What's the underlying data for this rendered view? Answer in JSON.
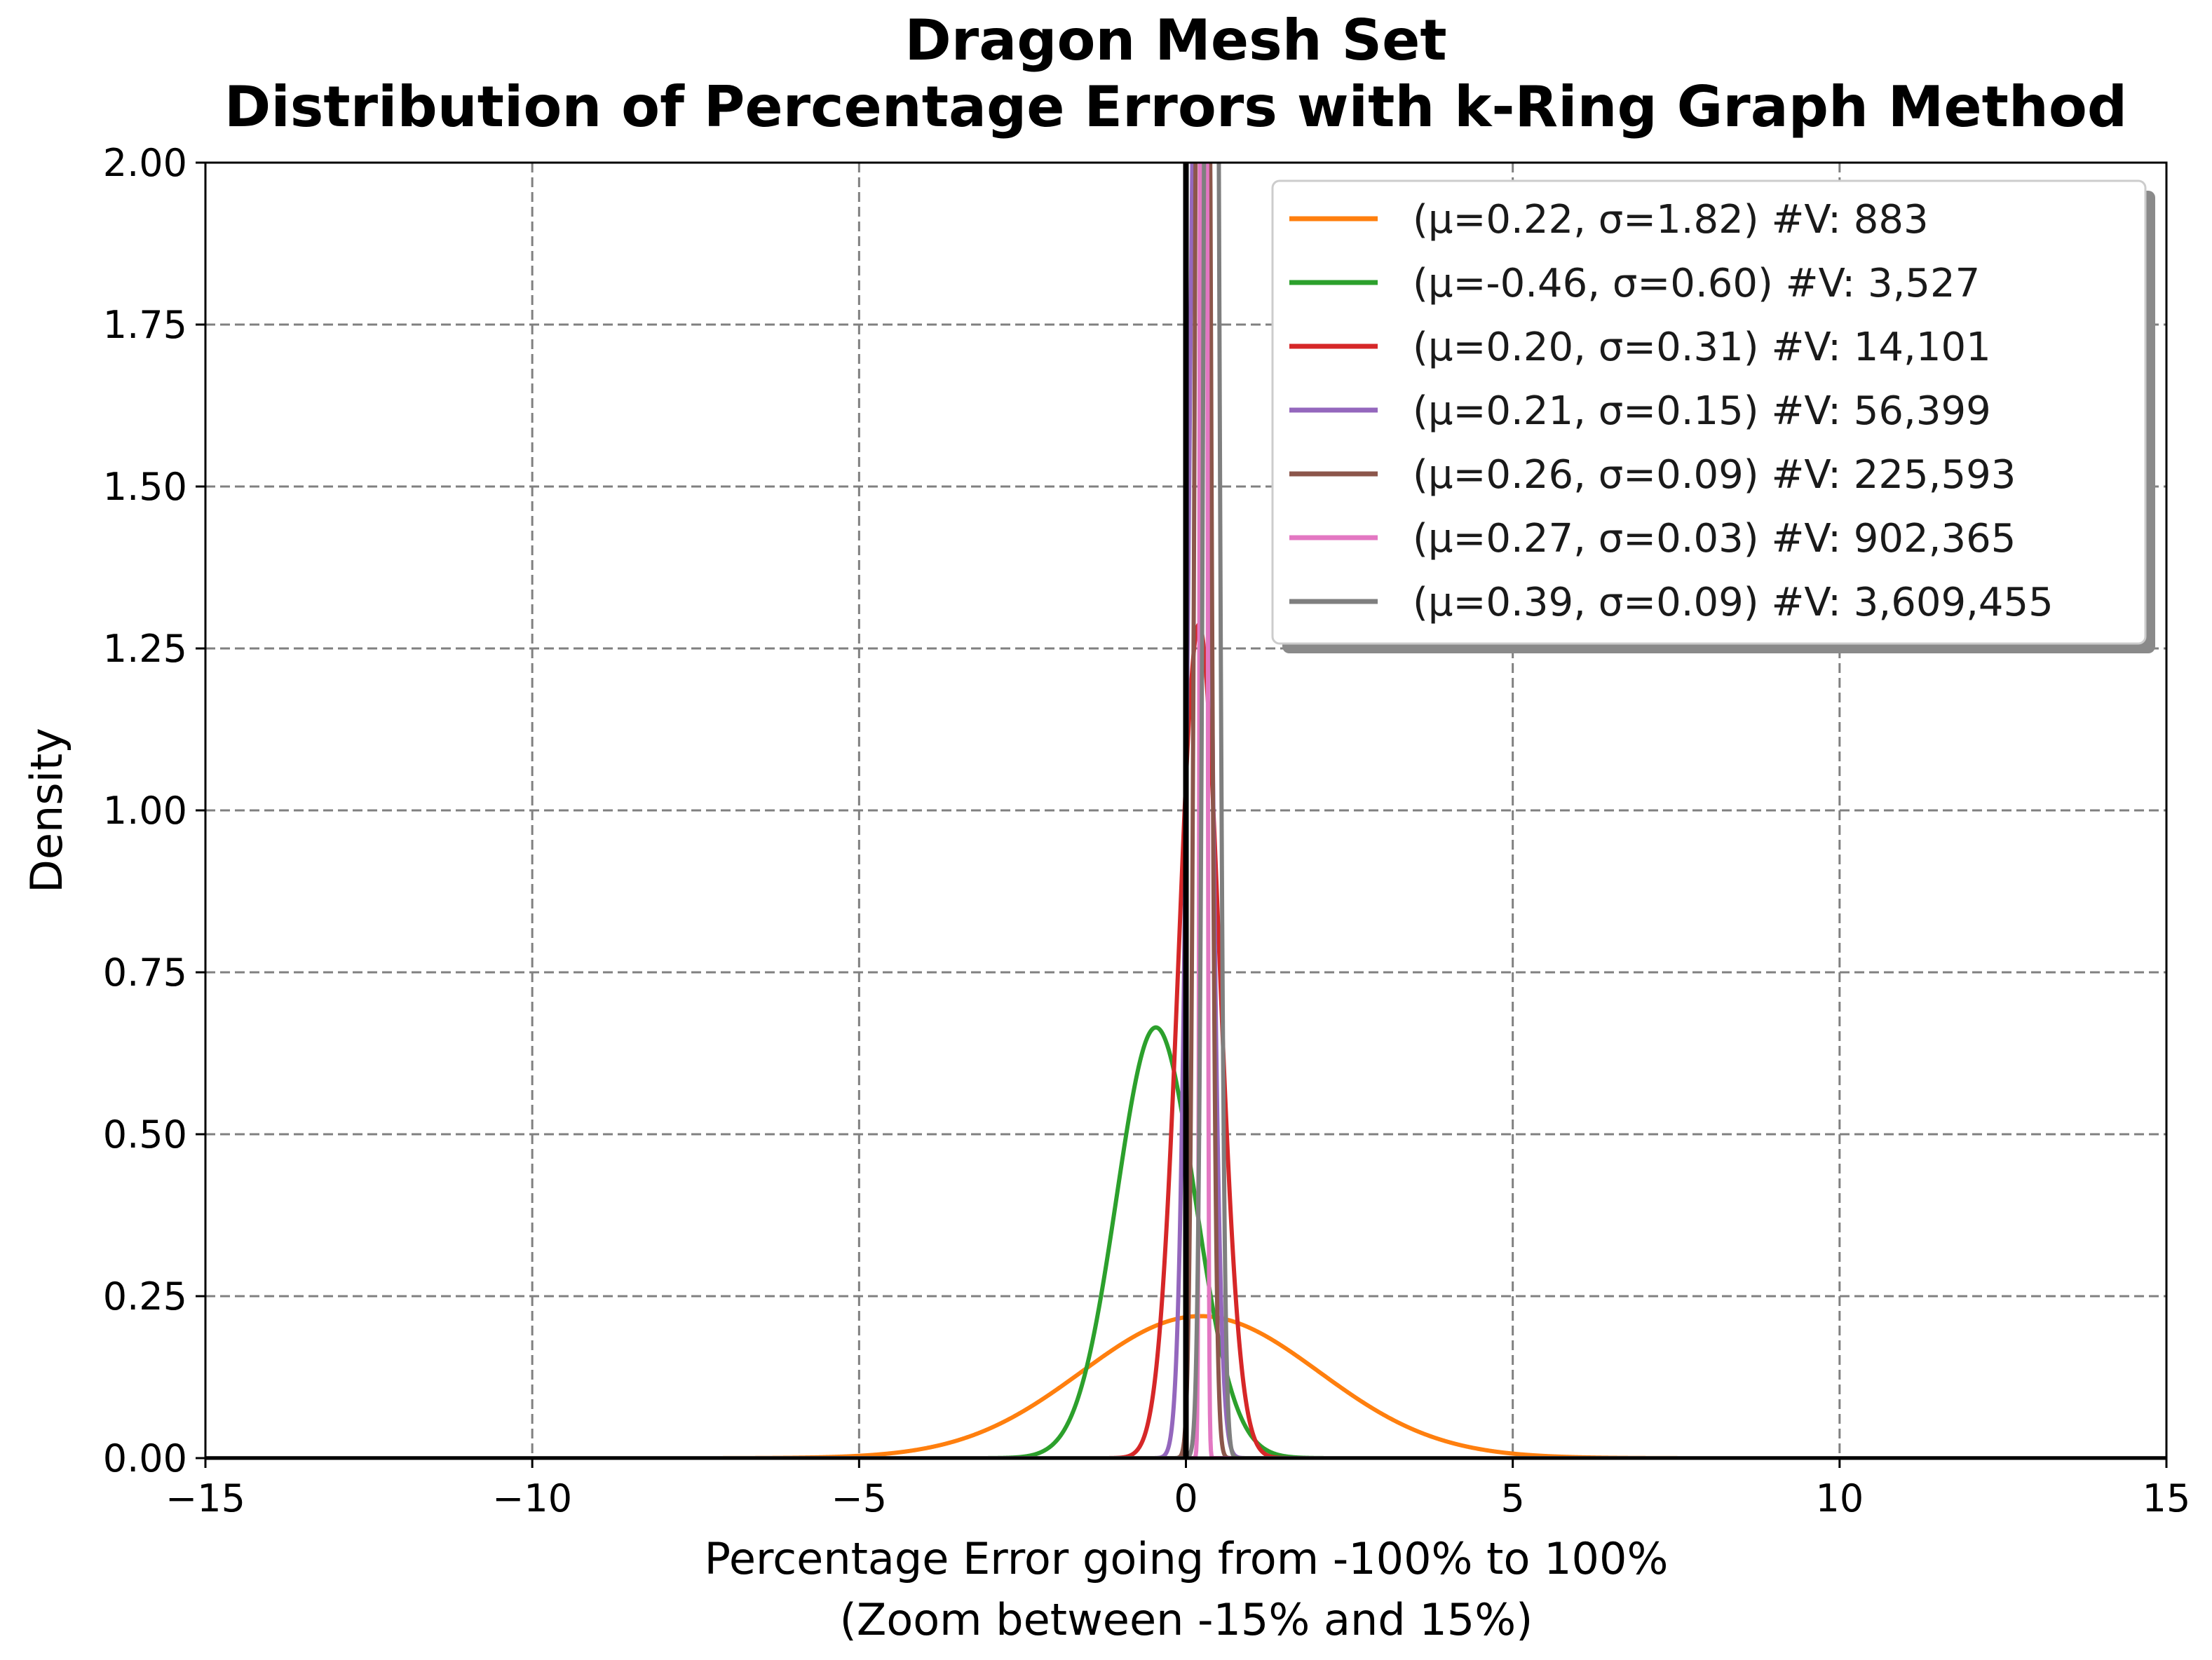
{
  "chart_data": {
    "type": "line",
    "title": "Dragon Mesh Set",
    "subtitle": "Distribution of Percentage Errors with k-Ring Graph Method",
    "xlabel": "Percentage Error going from -100% to 100%",
    "xlabel_sub": "(Zoom between -15% and 15%)",
    "ylabel": "Density",
    "xlim": [
      -15,
      15
    ],
    "ylim": [
      0,
      2.0
    ],
    "x_ticks": [
      -15,
      -10,
      -5,
      0,
      5,
      10,
      15
    ],
    "x_tick_labels": [
      "−15",
      "−10",
      "−5",
      "0",
      "5",
      "10",
      "15"
    ],
    "y_ticks": [
      0,
      0.25,
      0.5,
      0.75,
      1.0,
      1.25,
      1.5,
      1.75,
      2.0
    ],
    "y_tick_labels": [
      "0.00",
      "0.25",
      "0.50",
      "0.75",
      "1.00",
      "1.25",
      "1.50",
      "1.75",
      "2.00"
    ],
    "grid": true,
    "legend_position": "top-right",
    "reference_line_x": 0,
    "series": [
      {
        "name": "(μ=0.22, σ=1.82) #V: 883",
        "mu": 0.22,
        "sigma": 1.82,
        "color": "#ff7f0e"
      },
      {
        "name": "(μ=-0.46, σ=0.60) #V: 3,527",
        "mu": -0.46,
        "sigma": 0.6,
        "color": "#2ca02c"
      },
      {
        "name": "(μ=0.20, σ=0.31) #V: 14,101",
        "mu": 0.2,
        "sigma": 0.31,
        "color": "#d62728"
      },
      {
        "name": "(μ=0.21, σ=0.15) #V: 56,399",
        "mu": 0.21,
        "sigma": 0.15,
        "color": "#9467bd"
      },
      {
        "name": "(μ=0.26, σ=0.09) #V: 225,593",
        "mu": 0.26,
        "sigma": 0.09,
        "color": "#8c564b"
      },
      {
        "name": "(μ=0.27, σ=0.03) #V: 902,365",
        "mu": 0.27,
        "sigma": 0.03,
        "color": "#e377c2"
      },
      {
        "name": "(μ=0.39, σ=0.09) #V: 3,609,455",
        "mu": 0.39,
        "sigma": 0.09,
        "color": "#7f7f7f"
      }
    ]
  }
}
